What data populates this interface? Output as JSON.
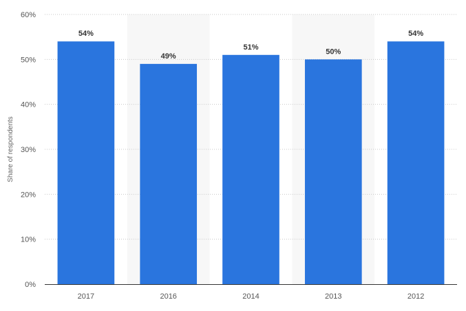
{
  "chart_data": {
    "type": "bar",
    "title": "",
    "xlabel": "",
    "ylabel": "Share of respondents",
    "categories": [
      "2017",
      "2016",
      "2014",
      "2013",
      "2012"
    ],
    "values": [
      54,
      49,
      51,
      50,
      54
    ],
    "data_labels": [
      "54%",
      "49%",
      "51%",
      "50%",
      "54%"
    ],
    "ylim": [
      0,
      60
    ],
    "yticks": [
      0,
      10,
      20,
      30,
      40,
      50,
      60
    ],
    "ytick_labels": [
      "0%",
      "10%",
      "20%",
      "30%",
      "40%",
      "50%",
      "60%"
    ],
    "grid": true,
    "bar_color": "#2a75de",
    "alternate_band_color": "#f7f7f7",
    "legend": "none"
  }
}
